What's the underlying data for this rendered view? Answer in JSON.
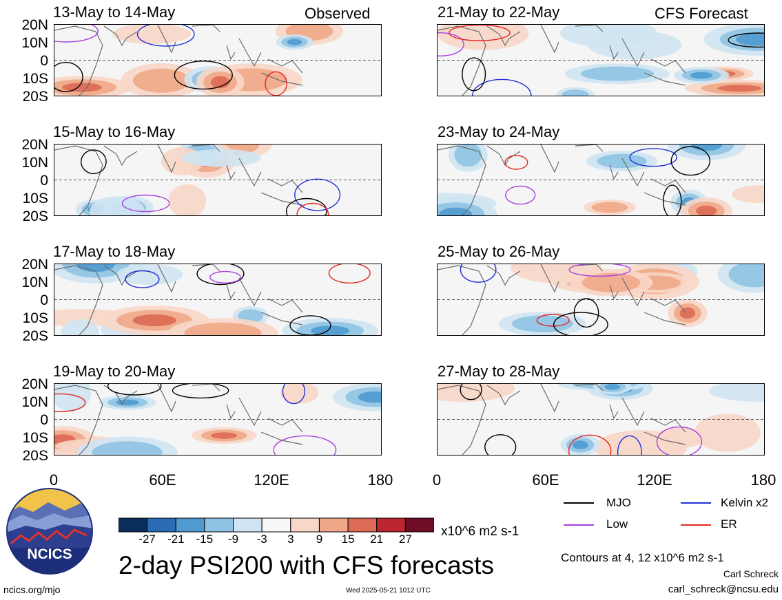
{
  "chart_data": {
    "type": "heatmap",
    "title": "2-day PSI200 with CFS forecasts",
    "panels": [
      {
        "column": "Observed",
        "period": "13-May to 14-May"
      },
      {
        "column": "Observed",
        "period": "15-May to 16-May"
      },
      {
        "column": "Observed",
        "period": "17-May to 18-May"
      },
      {
        "column": "Observed",
        "period": "19-May to 20-May"
      },
      {
        "column": "CFS Forecast",
        "period": "21-May to 22-May"
      },
      {
        "column": "CFS Forecast",
        "period": "23-May to 24-May"
      },
      {
        "column": "CFS Forecast",
        "period": "25-May to 26-May"
      },
      {
        "column": "CFS Forecast",
        "period": "27-May to 28-May"
      }
    ],
    "column_headers": [
      "Observed",
      "CFS Forecast"
    ],
    "y_ticks": [
      "20N",
      "10N",
      "0",
      "10S",
      "20S"
    ],
    "x_ticks": [
      "0",
      "60E",
      "120E",
      "180"
    ],
    "colorbar": {
      "ticks": [
        "-27",
        "-21",
        "-15",
        "-9",
        "-3",
        "3",
        "9",
        "15",
        "21",
        "27"
      ],
      "units": "x10^6 m2 s-1",
      "colors": [
        "#0a2e5c",
        "#2a6db5",
        "#4f9ad0",
        "#8fc3e3",
        "#cfe4f2",
        "#f8f8f8",
        "#f8d7c8",
        "#f0a888",
        "#dd6a55",
        "#bb2630",
        "#6e0d25"
      ]
    },
    "legend": [
      {
        "label": "MJO",
        "color": "#000000"
      },
      {
        "label": "Kelvin x2",
        "color": "#1f2fd6"
      },
      {
        "label": "Low",
        "color": "#a93fe0"
      },
      {
        "label": "ER",
        "color": "#e8241e"
      }
    ],
    "contour_note": "Contours at 4, 12 x10^6 m2 s-1"
  },
  "footer": {
    "logo_text": "NCICS",
    "url": "ncics.org/mjo",
    "timestamp": "Wed 2025-05-21 1012 UTC",
    "author": "Carl Schreck",
    "email": "carl_schreck@ncsu.edu"
  }
}
